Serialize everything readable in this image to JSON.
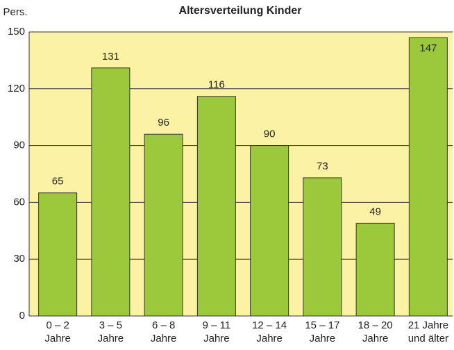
{
  "chart_data": {
    "type": "bar",
    "title": "Altersverteilung Kinder",
    "y_label": "Pers.",
    "categories": [
      [
        "0 – 2",
        "Jahre"
      ],
      [
        "3 – 5",
        "Jahre"
      ],
      [
        "6 – 8",
        "Jahre"
      ],
      [
        "9 – 11",
        "Jahre"
      ],
      [
        "12 – 14",
        "Jahre"
      ],
      [
        "15 – 17",
        "Jahre"
      ],
      [
        "18 – 20",
        "Jahre"
      ],
      [
        "21 Jahre",
        "und älter"
      ]
    ],
    "values": [
      65,
      131,
      96,
      116,
      90,
      73,
      49,
      147
    ],
    "color": "#9cc83c",
    "background": "#fcf2a4",
    "ylim": [
      0,
      150
    ],
    "yticks": [
      0,
      30,
      60,
      90,
      120,
      150
    ],
    "grid": true
  }
}
